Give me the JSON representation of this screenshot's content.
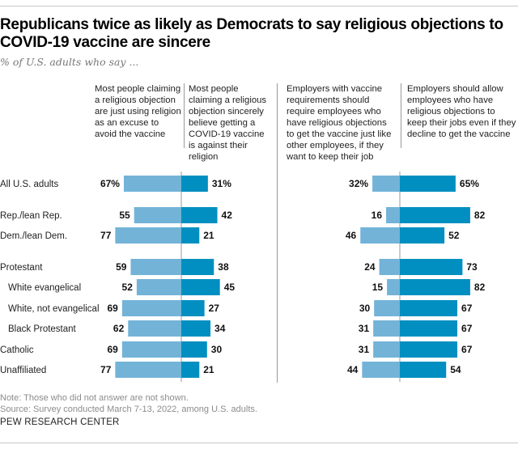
{
  "chart_data": {
    "type": "bar",
    "subtype": "diverging-horizontal",
    "title": "Republicans twice as likely as Democrats to say religious objections to COVID-19 vaccine are sincere",
    "subtitle": "% of U.S. adults who say ...",
    "categories": [
      "All U.S. adults",
      "Rep./lean Rep.",
      "Dem./lean Dem.",
      "Protestant",
      "White evangelical",
      "White, not evangelical",
      "Black Protestant",
      "Catholic",
      "Unaffiliated"
    ],
    "indented": [
      false,
      false,
      false,
      false,
      true,
      true,
      true,
      false,
      false
    ],
    "panels": [
      {
        "series": [
          {
            "name": "Most people claiming a religious objection are just using religion as an excuse to avoid the vaccine",
            "values": [
              67,
              55,
              77,
              59,
              52,
              69,
              62,
              69,
              77
            ],
            "color": "#73b3d8"
          },
          {
            "name": "Most people claiming a religious objection sincerely believe getting a COVID-19 vaccine is against their religion",
            "values": [
              31,
              42,
              21,
              38,
              45,
              27,
              34,
              30,
              21
            ],
            "color": "#008fc0"
          }
        ]
      },
      {
        "series": [
          {
            "name": "Employers with vaccine requirements should require employees who have religious objections to get the vaccine just like other employees, if they want to keep their job",
            "values": [
              32,
              16,
              46,
              24,
              15,
              30,
              31,
              31,
              44
            ],
            "color": "#73b3d8"
          },
          {
            "name": "Employers should allow employees who have religious objections to keep their jobs even if they decline to get the vaccine",
            "values": [
              65,
              82,
              52,
              73,
              82,
              67,
              67,
              67,
              54
            ],
            "color": "#008fc0"
          }
        ]
      }
    ],
    "first_row_suffix": "%",
    "units": "percent"
  },
  "headers": {
    "p1_left": [
      "Most people claiming",
      "a religious objection",
      "are just using religion",
      "as an excuse to",
      "avoid the vaccine"
    ],
    "p1_right": [
      "Most people",
      "claiming a religious",
      "objection sincerely",
      "believe getting a",
      "COVID-19 vaccine",
      "is against their",
      "religion"
    ],
    "p2_left": [
      "Employers with vaccine",
      "requirements should",
      "require employees who",
      "have religious objections",
      "to get the vaccine just like",
      "other employees, if they",
      "want to keep their job"
    ],
    "p2_right": [
      "Employers should allow",
      "employees who have",
      "religious objections to",
      "keep their jobs even if they",
      "decline to get the vaccine"
    ]
  },
  "footer": {
    "note": "Note: Those who did not answer are not shown.",
    "source": "Source: Survey conducted March 7-13, 2022, among U.S. adults.",
    "brand": "PEW RESEARCH CENTER"
  }
}
